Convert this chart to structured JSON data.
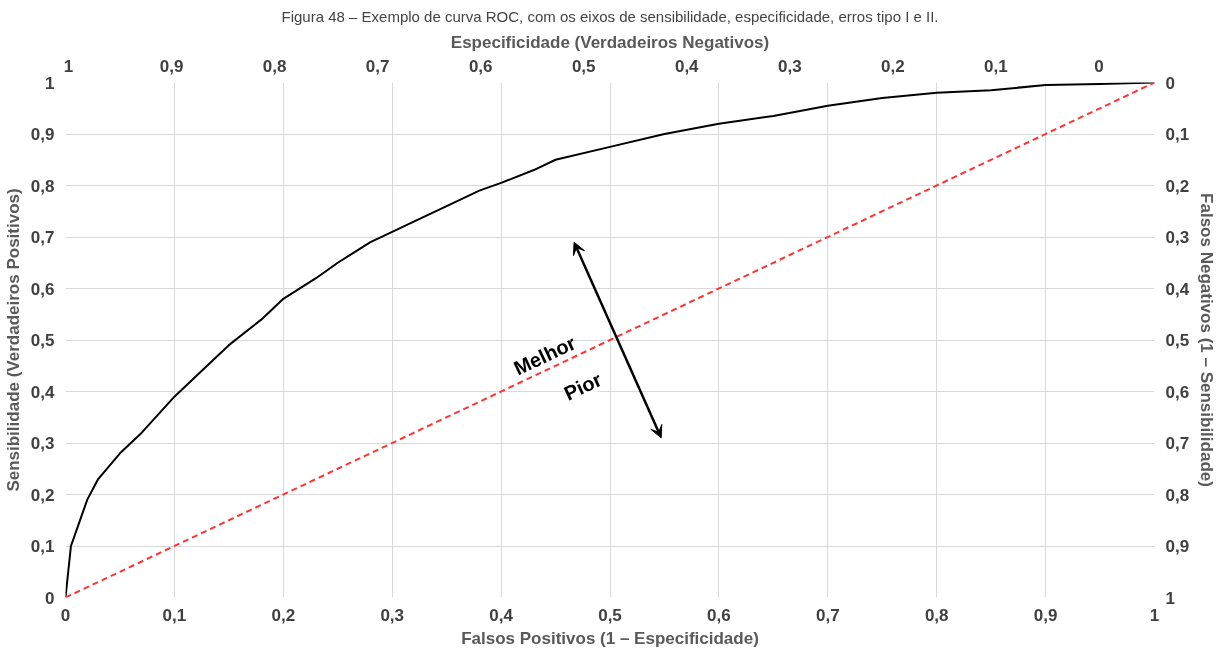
{
  "chart_data": {
    "type": "line",
    "title": "Figura 48 – Exemplo de curva ROC, com os eixos de sensibilidade, especificidade, erros tipo I e II.",
    "xlabel": "Falsos Positivos (1 – Especificidade)",
    "ylabel": "Sensibilidade (Verdadeiros Positivos)",
    "x2label": "Especificidade (Verdadeiros Negativos)",
    "y2label": "Falsos Negativos (1 – Sensibilidade)",
    "xlim": [
      0,
      1
    ],
    "ylim": [
      0,
      1
    ],
    "x2lim": [
      1.003,
      -0.054
    ],
    "y2lim": [
      1,
      0
    ],
    "xticks": [
      0,
      {
        "value": 0.1,
        "label": "0,1"
      },
      {
        "value": 0.2,
        "label": "0,2"
      },
      {
        "value": 0.3,
        "label": "0,3"
      },
      {
        "value": 0.4,
        "label": "0,4"
      },
      {
        "value": 0.5,
        "label": "0,5"
      },
      {
        "value": 0.6,
        "label": "0,6"
      },
      {
        "value": 0.7,
        "label": "0,7"
      },
      {
        "value": 0.8,
        "label": "0,8"
      },
      {
        "value": 0.9,
        "label": "0,9"
      },
      1
    ],
    "yticks": [
      0,
      {
        "value": 0.1,
        "label": "0,1"
      },
      {
        "value": 0.2,
        "label": "0,2"
      },
      {
        "value": 0.3,
        "label": "0,3"
      },
      {
        "value": 0.4,
        "label": "0,4"
      },
      {
        "value": 0.5,
        "label": "0,5"
      },
      {
        "value": 0.6,
        "label": "0,6"
      },
      {
        "value": 0.7,
        "label": "0,7"
      },
      {
        "value": 0.8,
        "label": "0,8"
      },
      {
        "value": 0.9,
        "label": "0,9"
      },
      1
    ],
    "x2ticks": [
      1,
      {
        "value": 0.9,
        "label": "0,9"
      },
      {
        "value": 0.8,
        "label": "0,8"
      },
      {
        "value": 0.7,
        "label": "0,7"
      },
      {
        "value": 0.6,
        "label": "0,6"
      },
      {
        "value": 0.5,
        "label": "0,5"
      },
      {
        "value": 0.4,
        "label": "0,4"
      },
      {
        "value": 0.3,
        "label": "0,3"
      },
      {
        "value": 0.2,
        "label": "0,2"
      },
      {
        "value": 0.1,
        "label": "0,1"
      },
      0
    ],
    "y2ticks": [
      0,
      {
        "value": 0.1,
        "label": "0,1"
      },
      {
        "value": 0.2,
        "label": "0,2"
      },
      {
        "value": 0.3,
        "label": "0,3"
      },
      {
        "value": 0.4,
        "label": "0,4"
      },
      {
        "value": 0.5,
        "label": "0,5"
      },
      {
        "value": 0.6,
        "label": "0,6"
      },
      {
        "value": 0.7,
        "label": "0,7"
      },
      {
        "value": 0.8,
        "label": "0,8"
      },
      {
        "value": 0.9,
        "label": "0,9"
      },
      1
    ],
    "grid": true,
    "marker": "none",
    "series": [
      {
        "color": "#000000",
        "line_style": "solid",
        "x": [
          0,
          0.005,
          0.01,
          0.02,
          0.03,
          0.05,
          0.07,
          0.1,
          0.13,
          0.15,
          0.18,
          0.2,
          0.23,
          0.25,
          0.28,
          0.3,
          0.33,
          0.35,
          0.38,
          0.4,
          0.43,
          0.45,
          0.5,
          0.55,
          0.6,
          0.65,
          0.7,
          0.75,
          0.8,
          0.85,
          0.9,
          0.95,
          1
        ],
        "values": [
          0,
          0.1,
          0.13,
          0.19,
          0.23,
          0.28,
          0.32,
          0.39,
          0.45,
          0.49,
          0.54,
          0.58,
          0.62,
          0.65,
          0.69,
          0.71,
          0.74,
          0.76,
          0.79,
          0.805,
          0.83,
          0.85,
          0.875,
          0.9,
          0.92,
          0.935,
          0.955,
          0.97,
          0.98,
          0.985,
          0.995,
          0.997,
          1
        ]
      },
      {
        "color": "#ff3333",
        "line_style": "dashed",
        "x": [
          0,
          1
        ],
        "values": [
          0,
          1
        ]
      }
    ],
    "annotations": [
      "Melhor",
      "Pior"
    ]
  }
}
